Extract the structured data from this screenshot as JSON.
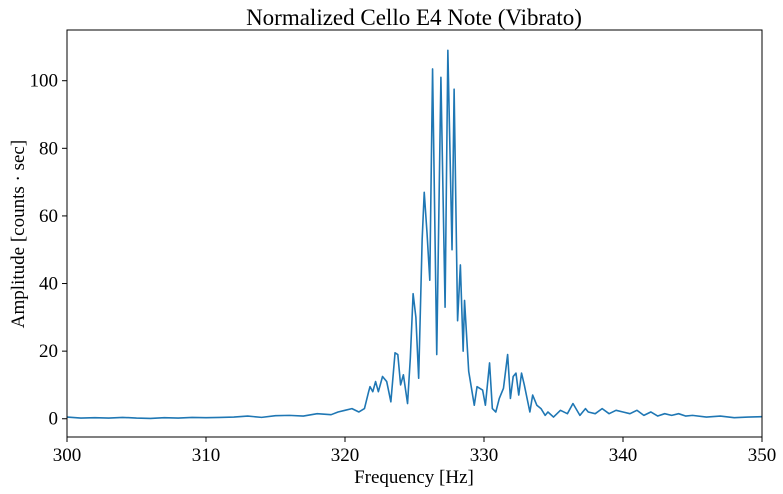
{
  "chart_data": {
    "type": "line",
    "title": "Normalized Cello E4 Note (Vibrato)",
    "x_label": "Frequency [Hz]",
    "y_label": "Amplitude [counts · sec]",
    "color": "#1f77b4",
    "x": [
      300,
      301,
      302,
      303,
      304,
      305,
      306,
      307,
      308,
      309,
      310,
      311,
      312,
      313,
      314,
      315,
      316,
      317,
      318,
      319,
      319.5,
      320,
      320.5,
      321,
      321.4,
      321.7,
      321.8,
      322,
      322.2,
      322.4,
      322.7,
      323,
      323.3,
      323.6,
      323.8,
      324,
      324.2,
      324.5,
      324.7,
      324.9,
      325.1,
      325.3,
      325.55,
      325.7,
      325.9,
      326.1,
      326.3,
      326.6,
      326.9,
      327.2,
      327.4,
      327.7,
      327.85,
      328.1,
      328.3,
      328.5,
      328.6,
      328.9,
      329.3,
      329.5,
      329.9,
      330.1,
      330.4,
      330.6,
      330.85,
      331.1,
      331.4,
      331.7,
      331.9,
      332.1,
      332.3,
      332.5,
      332.7,
      332.9,
      333.3,
      333.5,
      333.8,
      334.1,
      334.4,
      334.6,
      335,
      335.5,
      336,
      336.4,
      336.9,
      337.3,
      337.5,
      338,
      338.5,
      339,
      339.5,
      340,
      340.5,
      341,
      341.5,
      342,
      342.5,
      343,
      343.5,
      344,
      344.5,
      345,
      346,
      347,
      348,
      349,
      350
    ],
    "values": [
      0.5,
      0.2,
      0.3,
      0.2,
      0.4,
      0.2,
      0.1,
      0.3,
      0.2,
      0.4,
      0.3,
      0.4,
      0.5,
      0.8,
      0.4,
      0.9,
      1.0,
      0.8,
      1.5,
      1.2,
      2,
      2.5,
      3,
      2,
      3,
      8,
      9.5,
      8,
      11,
      8,
      12.5,
      11,
      5,
      19.5,
      19,
      10,
      13,
      4.5,
      18,
      37,
      30,
      12,
      53,
      67,
      55,
      41,
      103.5,
      19,
      101,
      33,
      109,
      50,
      97.5,
      29,
      45.5,
      20,
      35,
      14,
      4,
      9.5,
      8.5,
      4,
      16.5,
      3,
      2,
      6,
      9,
      19,
      6,
      12.5,
      13.5,
      7,
      13.5,
      10,
      2,
      7,
      4,
      3,
      1,
      2,
      0.5,
      2.5,
      1.5,
      4.5,
      1,
      3,
      2,
      1.5,
      3,
      1.5,
      2.5,
      2,
      1.5,
      2.5,
      1,
      2,
      0.8,
      1.5,
      1,
      1.5,
      0.8,
      1,
      0.5,
      0.8,
      0.3,
      0.5,
      0.6
    ],
    "xlim": [
      300,
      350
    ],
    "ylim": [
      -5.4,
      115
    ],
    "xticks": [
      300,
      310,
      320,
      330,
      340,
      350
    ],
    "yticks": [
      0,
      20,
      40,
      60,
      80,
      100
    ]
  }
}
